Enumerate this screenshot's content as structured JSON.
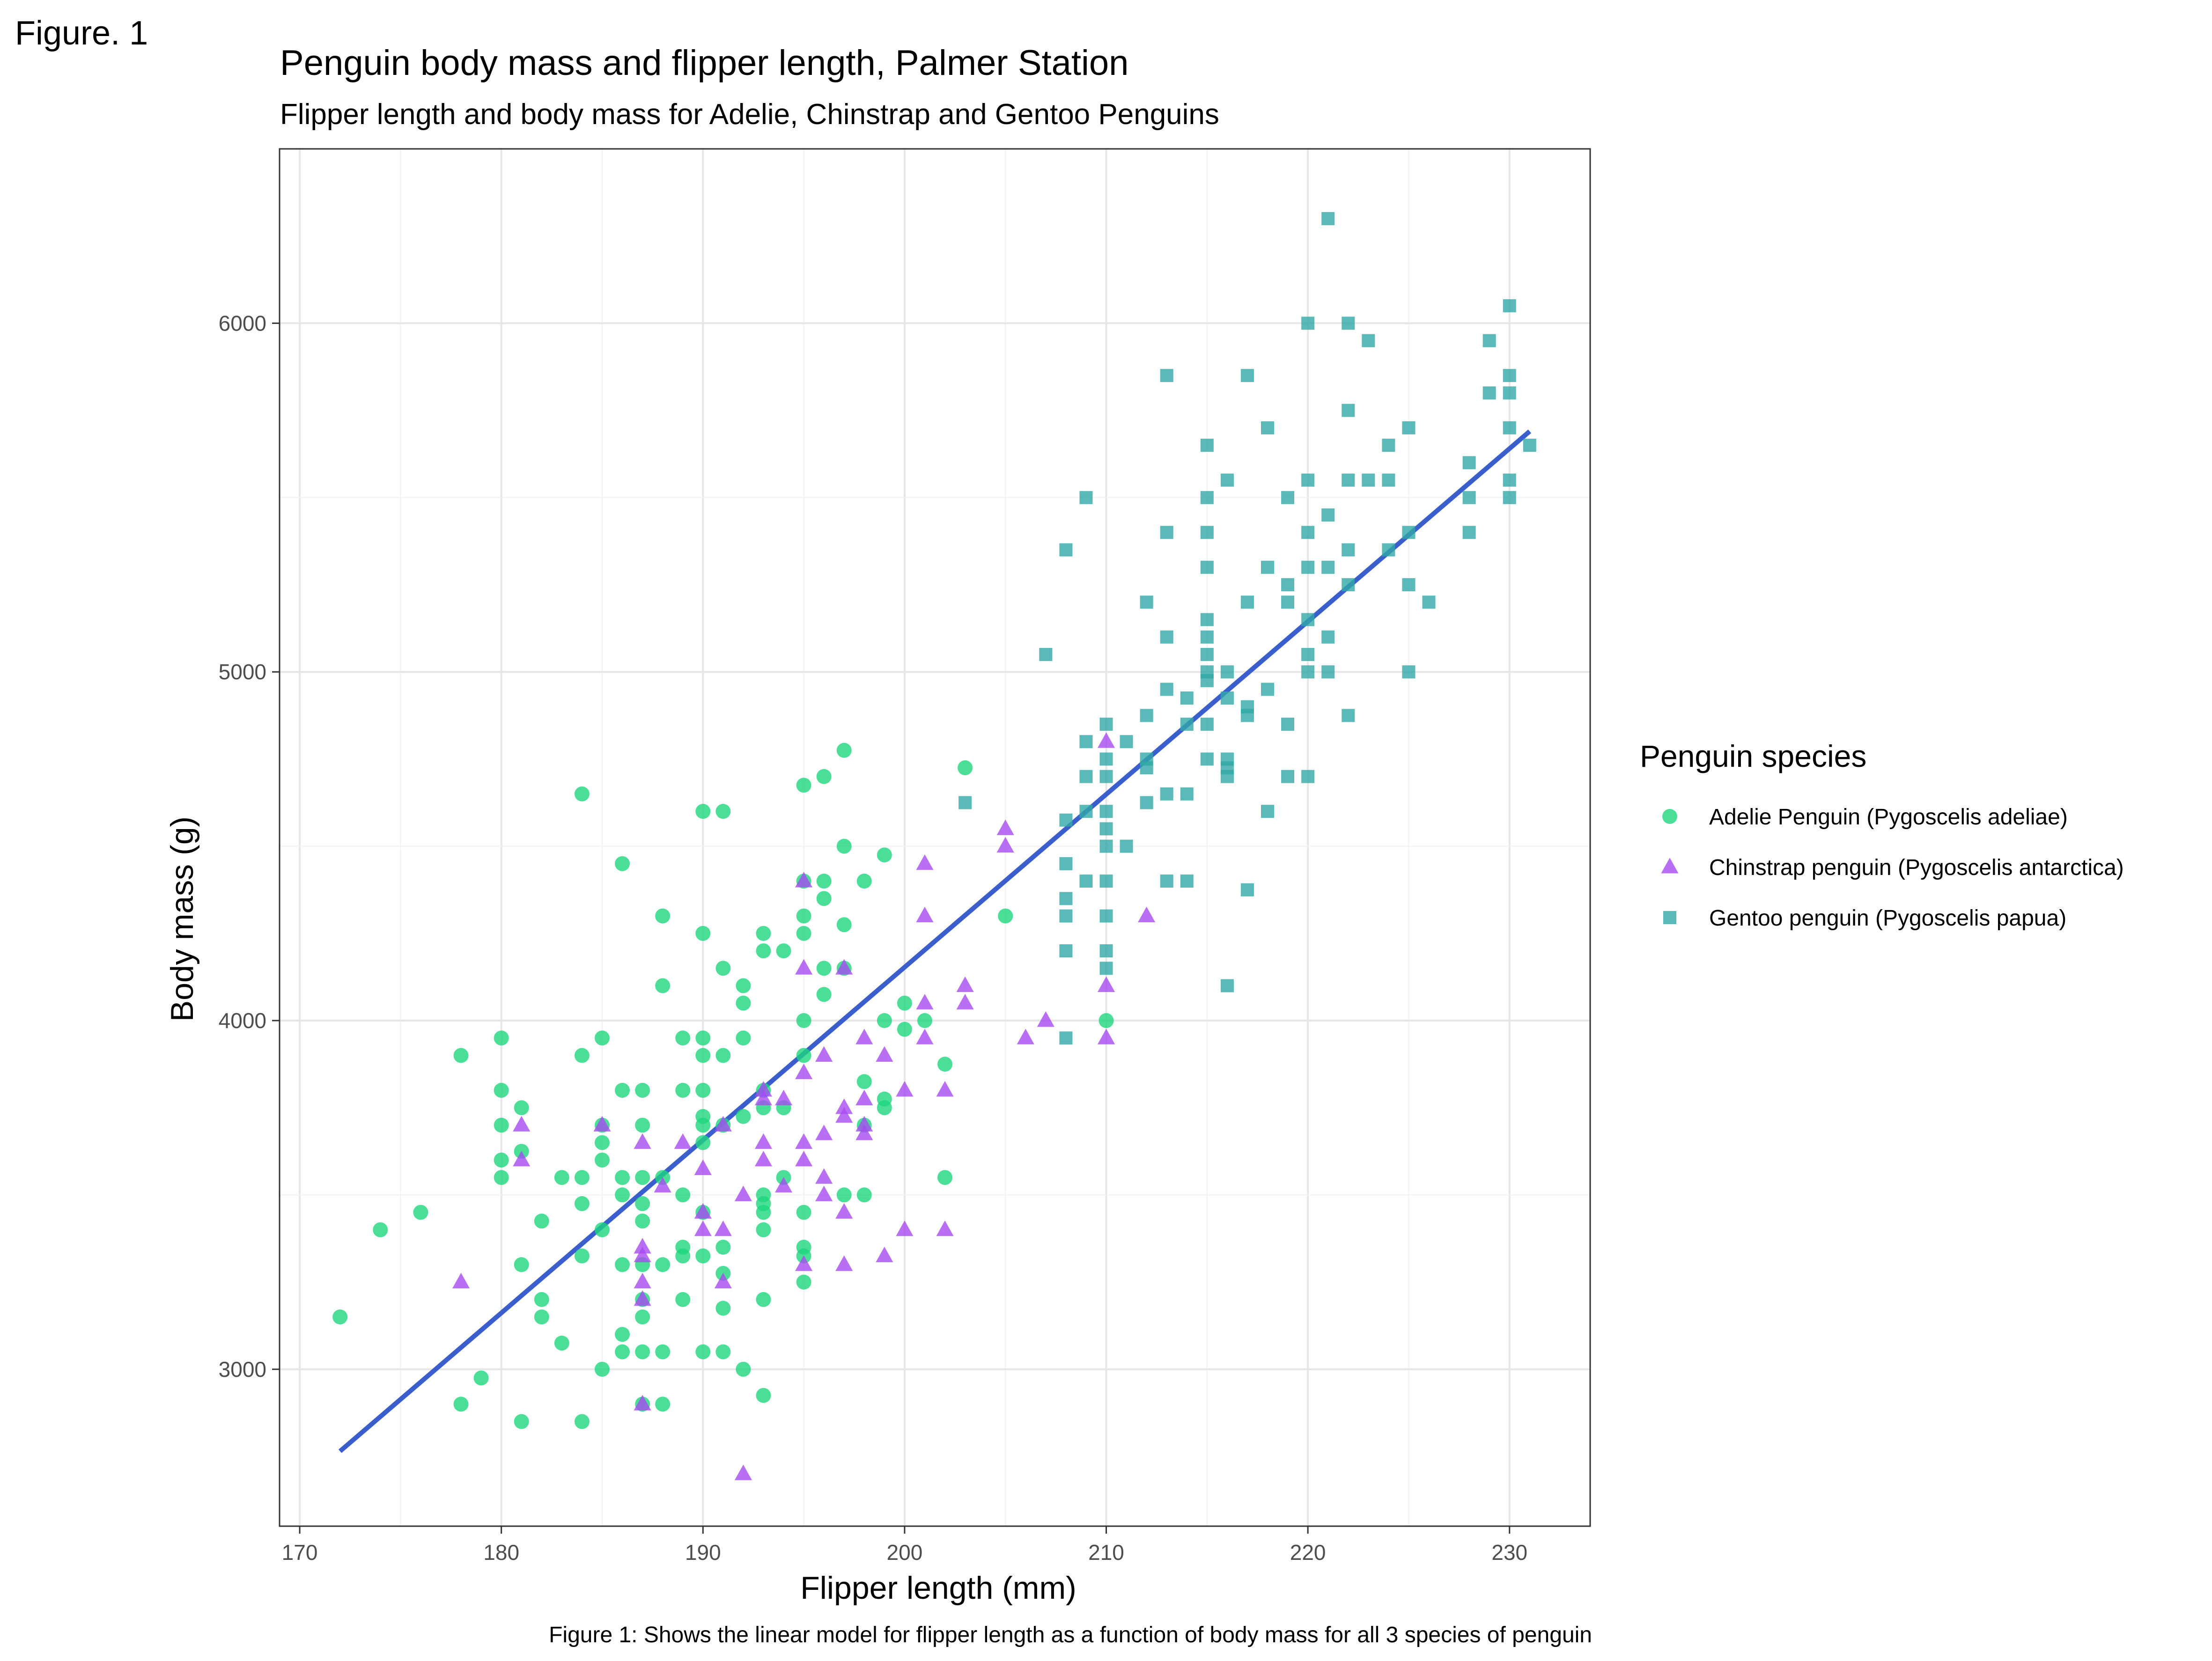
{
  "figure_label": "Figure. 1",
  "chart_data": {
    "type": "scatter",
    "title": "Penguin body mass and flipper length, Palmer Station",
    "subtitle": "Flipper length and body mass for Adelie, Chinstrap and Gentoo Penguins",
    "xlabel": "Flipper length (mm)",
    "ylabel": "Body mass (g)",
    "caption": "Figure 1: Shows the linear model for flipper length as a function of body mass for all 3 species of penguin",
    "xlim": [
      169,
      234
    ],
    "ylim": [
      2550,
      6500
    ],
    "x_ticks": [
      170,
      180,
      190,
      200,
      210,
      220,
      230
    ],
    "y_ticks": [
      3000,
      4000,
      5000,
      6000
    ],
    "grid": true,
    "legend_title": "Penguin species",
    "legend_position": "right",
    "series": [
      {
        "name": "Adelie Penguin (Pygoscelis adeliae)",
        "marker": "circle",
        "color": "#1ed67d",
        "points": [
          [
            172,
            3150
          ],
          [
            174,
            3400
          ],
          [
            176,
            3450
          ],
          [
            178,
            3900
          ],
          [
            178,
            2900
          ],
          [
            179,
            2975
          ],
          [
            180,
            3950
          ],
          [
            180,
            3800
          ],
          [
            180,
            3700
          ],
          [
            180,
            3600
          ],
          [
            180,
            3550
          ],
          [
            181,
            3750
          ],
          [
            181,
            3625
          ],
          [
            181,
            3300
          ],
          [
            181,
            2850
          ],
          [
            182,
            3425
          ],
          [
            182,
            3200
          ],
          [
            182,
            3150
          ],
          [
            183,
            3550
          ],
          [
            183,
            3075
          ],
          [
            184,
            4650
          ],
          [
            184,
            3900
          ],
          [
            184,
            3550
          ],
          [
            184,
            3475
          ],
          [
            184,
            3325
          ],
          [
            184,
            2850
          ],
          [
            185,
            3950
          ],
          [
            185,
            3700
          ],
          [
            185,
            3650
          ],
          [
            185,
            3600
          ],
          [
            185,
            3400
          ],
          [
            185,
            3000
          ],
          [
            186,
            4450
          ],
          [
            186,
            3800
          ],
          [
            186,
            3550
          ],
          [
            186,
            3500
          ],
          [
            186,
            3300
          ],
          [
            186,
            3100
          ],
          [
            186,
            3050
          ],
          [
            187,
            3800
          ],
          [
            187,
            3700
          ],
          [
            187,
            3550
          ],
          [
            187,
            3475
          ],
          [
            187,
            3425
          ],
          [
            187,
            3300
          ],
          [
            187,
            3200
          ],
          [
            187,
            3150
          ],
          [
            187,
            3050
          ],
          [
            187,
            2900
          ],
          [
            188,
            4300
          ],
          [
            188,
            4100
          ],
          [
            188,
            3550
          ],
          [
            188,
            3300
          ],
          [
            188,
            3050
          ],
          [
            188,
            2900
          ],
          [
            189,
            3950
          ],
          [
            189,
            3800
          ],
          [
            189,
            3500
          ],
          [
            189,
            3350
          ],
          [
            189,
            3325
          ],
          [
            189,
            3200
          ],
          [
            190,
            4600
          ],
          [
            190,
            4250
          ],
          [
            190,
            3950
          ],
          [
            190,
            3900
          ],
          [
            190,
            3800
          ],
          [
            190,
            3725
          ],
          [
            190,
            3700
          ],
          [
            190,
            3650
          ],
          [
            190,
            3450
          ],
          [
            190,
            3325
          ],
          [
            190,
            3050
          ],
          [
            191,
            4600
          ],
          [
            191,
            4150
          ],
          [
            191,
            3900
          ],
          [
            191,
            3700
          ],
          [
            191,
            3350
          ],
          [
            191,
            3275
          ],
          [
            191,
            3175
          ],
          [
            191,
            3050
          ],
          [
            192,
            4100
          ],
          [
            192,
            4050
          ],
          [
            192,
            3950
          ],
          [
            192,
            3725
          ],
          [
            192,
            3000
          ],
          [
            193,
            4250
          ],
          [
            193,
            4200
          ],
          [
            193,
            3800
          ],
          [
            193,
            3750
          ],
          [
            193,
            3500
          ],
          [
            193,
            3475
          ],
          [
            193,
            3450
          ],
          [
            193,
            3400
          ],
          [
            193,
            3200
          ],
          [
            193,
            2925
          ],
          [
            194,
            4200
          ],
          [
            194,
            3750
          ],
          [
            194,
            3550
          ],
          [
            195,
            4675
          ],
          [
            195,
            4400
          ],
          [
            195,
            4300
          ],
          [
            195,
            4250
          ],
          [
            195,
            4000
          ],
          [
            195,
            3900
          ],
          [
            195,
            3450
          ],
          [
            195,
            3350
          ],
          [
            195,
            3325
          ],
          [
            195,
            3250
          ],
          [
            196,
            4700
          ],
          [
            196,
            4400
          ],
          [
            196,
            4350
          ],
          [
            196,
            4150
          ],
          [
            196,
            4075
          ],
          [
            197,
            4775
          ],
          [
            197,
            4500
          ],
          [
            197,
            4275
          ],
          [
            197,
            4150
          ],
          [
            197,
            3500
          ],
          [
            198,
            4400
          ],
          [
            198,
            3825
          ],
          [
            198,
            3700
          ],
          [
            198,
            3500
          ],
          [
            199,
            4475
          ],
          [
            199,
            4000
          ],
          [
            199,
            3775
          ],
          [
            199,
            3750
          ],
          [
            200,
            4050
          ],
          [
            200,
            3975
          ],
          [
            201,
            4000
          ],
          [
            202,
            3875
          ],
          [
            202,
            3550
          ],
          [
            203,
            4725
          ],
          [
            205,
            4300
          ],
          [
            210,
            4000
          ]
        ]
      },
      {
        "name": "Chinstrap penguin (Pygoscelis antarctica)",
        "marker": "triangle",
        "color": "#a64bf1",
        "points": [
          [
            178,
            3250
          ],
          [
            181,
            3700
          ],
          [
            181,
            3600
          ],
          [
            185,
            3700
          ],
          [
            187,
            3650
          ],
          [
            187,
            3350
          ],
          [
            187,
            3325
          ],
          [
            187,
            3250
          ],
          [
            187,
            3200
          ],
          [
            187,
            2900
          ],
          [
            188,
            3525
          ],
          [
            189,
            3650
          ],
          [
            190,
            3575
          ],
          [
            190,
            3450
          ],
          [
            190,
            3400
          ],
          [
            191,
            3700
          ],
          [
            191,
            3400
          ],
          [
            191,
            3250
          ],
          [
            192,
            3500
          ],
          [
            193,
            3800
          ],
          [
            193,
            3775
          ],
          [
            193,
            3650
          ],
          [
            193,
            3600
          ],
          [
            194,
            3775
          ],
          [
            194,
            3525
          ],
          [
            195,
            4400
          ],
          [
            195,
            4150
          ],
          [
            195,
            3850
          ],
          [
            195,
            3650
          ],
          [
            195,
            3600
          ],
          [
            195,
            3300
          ],
          [
            196,
            3900
          ],
          [
            196,
            3675
          ],
          [
            196,
            3550
          ],
          [
            196,
            3500
          ],
          [
            197,
            4150
          ],
          [
            197,
            3750
          ],
          [
            197,
            3725
          ],
          [
            197,
            3450
          ],
          [
            197,
            3300
          ],
          [
            198,
            3950
          ],
          [
            198,
            3775
          ],
          [
            198,
            3700
          ],
          [
            198,
            3675
          ],
          [
            199,
            3900
          ],
          [
            199,
            3325
          ],
          [
            200,
            3800
          ],
          [
            200,
            3400
          ],
          [
            201,
            4450
          ],
          [
            201,
            4300
          ],
          [
            201,
            4050
          ],
          [
            201,
            3950
          ],
          [
            202,
            3800
          ],
          [
            202,
            3400
          ],
          [
            203,
            4100
          ],
          [
            203,
            4050
          ],
          [
            205,
            4550
          ],
          [
            205,
            4500
          ],
          [
            206,
            3950
          ],
          [
            207,
            4000
          ],
          [
            210,
            4800
          ],
          [
            210,
            4100
          ],
          [
            210,
            3950
          ],
          [
            212,
            4300
          ],
          [
            192,
            2700
          ]
        ]
      },
      {
        "name": "Gentoo penguin (Pygoscelis papua)",
        "marker": "square",
        "color": "#32a8a8",
        "points": [
          [
            203,
            4625
          ],
          [
            207,
            5050
          ],
          [
            208,
            5350
          ],
          [
            208,
            4575
          ],
          [
            208,
            4450
          ],
          [
            208,
            4350
          ],
          [
            208,
            4300
          ],
          [
            208,
            4200
          ],
          [
            208,
            3950
          ],
          [
            209,
            5500
          ],
          [
            209,
            4800
          ],
          [
            209,
            4700
          ],
          [
            209,
            4600
          ],
          [
            209,
            4400
          ],
          [
            210,
            4850
          ],
          [
            210,
            4750
          ],
          [
            210,
            4700
          ],
          [
            210,
            4600
          ],
          [
            210,
            4550
          ],
          [
            210,
            4500
          ],
          [
            210,
            4400
          ],
          [
            210,
            4300
          ],
          [
            210,
            4200
          ],
          [
            210,
            4150
          ],
          [
            211,
            4800
          ],
          [
            211,
            4500
          ],
          [
            212,
            5200
          ],
          [
            212,
            4875
          ],
          [
            212,
            4750
          ],
          [
            212,
            4725
          ],
          [
            212,
            4625
          ],
          [
            213,
            5850
          ],
          [
            213,
            5400
          ],
          [
            213,
            5100
          ],
          [
            213,
            4950
          ],
          [
            213,
            4650
          ],
          [
            213,
            4400
          ],
          [
            214,
            4925
          ],
          [
            214,
            4650
          ],
          [
            214,
            4400
          ],
          [
            214,
            4850
          ],
          [
            215,
            5650
          ],
          [
            215,
            5500
          ],
          [
            215,
            5400
          ],
          [
            215,
            5300
          ],
          [
            215,
            5150
          ],
          [
            215,
            5100
          ],
          [
            215,
            5050
          ],
          [
            215,
            5000
          ],
          [
            215,
            4975
          ],
          [
            215,
            4850
          ],
          [
            215,
            4750
          ],
          [
            216,
            5550
          ],
          [
            216,
            5000
          ],
          [
            216,
            4925
          ],
          [
            216,
            4750
          ],
          [
            216,
            4725
          ],
          [
            216,
            4700
          ],
          [
            216,
            4100
          ],
          [
            217,
            5850
          ],
          [
            217,
            5200
          ],
          [
            217,
            4900
          ],
          [
            217,
            4875
          ],
          [
            217,
            4375
          ],
          [
            218,
            5700
          ],
          [
            218,
            5300
          ],
          [
            218,
            4950
          ],
          [
            218,
            4600
          ],
          [
            219,
            5500
          ],
          [
            219,
            5250
          ],
          [
            219,
            5200
          ],
          [
            219,
            4850
          ],
          [
            219,
            4700
          ],
          [
            220,
            6000
          ],
          [
            220,
            5550
          ],
          [
            220,
            5400
          ],
          [
            220,
            5300
          ],
          [
            220,
            5150
          ],
          [
            220,
            5050
          ],
          [
            220,
            5000
          ],
          [
            220,
            4700
          ],
          [
            221,
            6300
          ],
          [
            221,
            5450
          ],
          [
            221,
            5300
          ],
          [
            221,
            5100
          ],
          [
            221,
            5000
          ],
          [
            222,
            6000
          ],
          [
            222,
            5750
          ],
          [
            222,
            5550
          ],
          [
            222,
            5350
          ],
          [
            222,
            5250
          ],
          [
            222,
            4875
          ],
          [
            223,
            5950
          ],
          [
            223,
            5550
          ],
          [
            224,
            5650
          ],
          [
            224,
            5550
          ],
          [
            224,
            5350
          ],
          [
            225,
            5700
          ],
          [
            225,
            5400
          ],
          [
            225,
            5250
          ],
          [
            225,
            5000
          ],
          [
            226,
            5200
          ],
          [
            228,
            5600
          ],
          [
            228,
            5500
          ],
          [
            228,
            5400
          ],
          [
            229,
            5950
          ],
          [
            229,
            5800
          ],
          [
            230,
            6050
          ],
          [
            230,
            5850
          ],
          [
            230,
            5800
          ],
          [
            230,
            5700
          ],
          [
            230,
            5550
          ],
          [
            230,
            5500
          ],
          [
            231,
            5650
          ]
        ]
      }
    ],
    "fit_line": {
      "label": "linear model",
      "color": "#3a5fcd",
      "x": [
        172,
        231
      ],
      "y": [
        2765,
        5690
      ]
    }
  }
}
